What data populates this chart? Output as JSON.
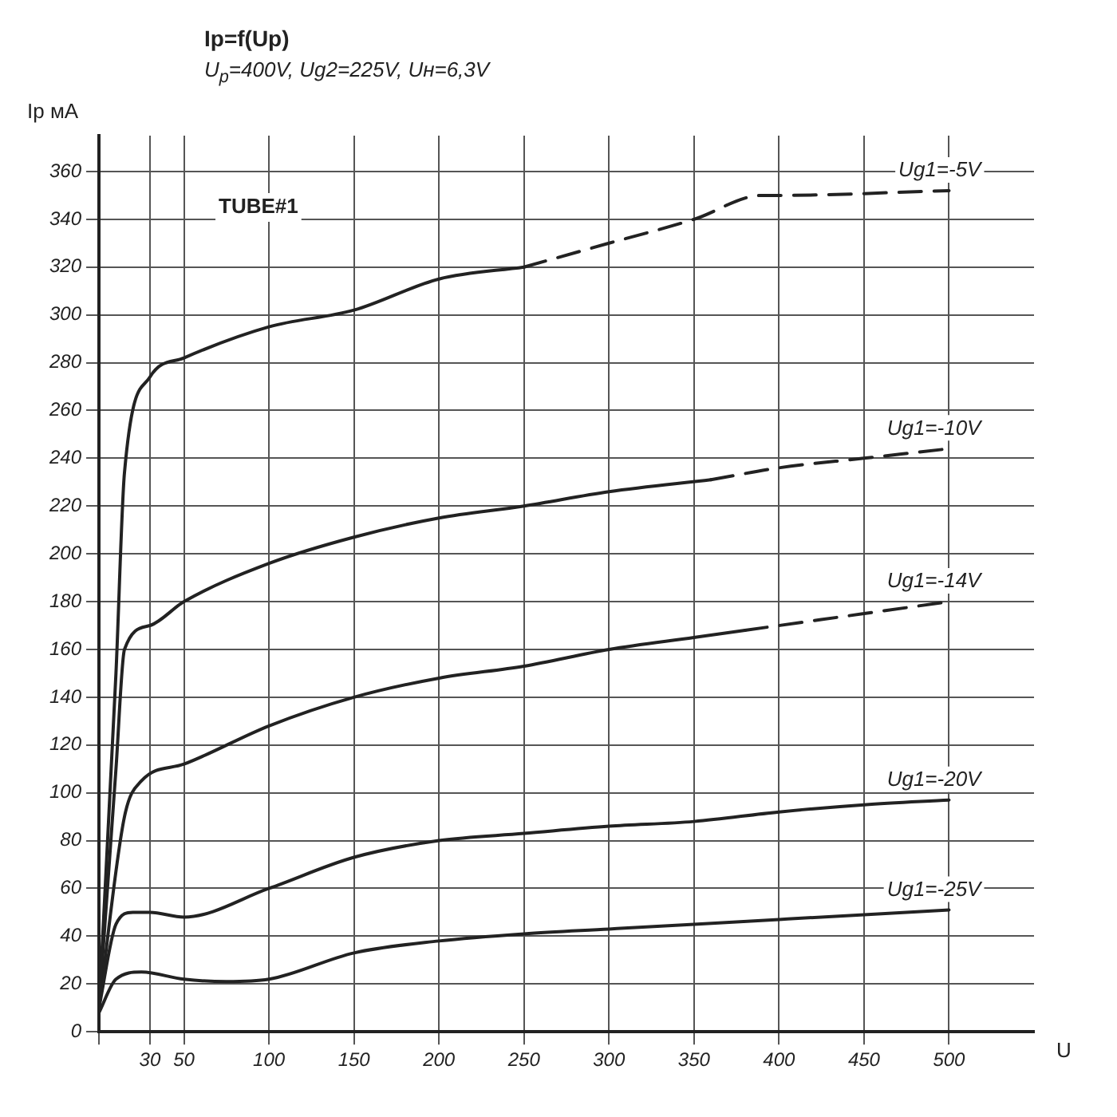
{
  "chart_data": {
    "type": "line",
    "title": "Ip=f(Up)",
    "subtitle": "U$_{p}$=400V, Ug2=225V, Uн=6,3V",
    "ylabel": "Ip мА",
    "xlabel": "U",
    "annotations": [
      "TUBE#1"
    ],
    "xlim": [
      0,
      550
    ],
    "xticks": [
      {
        "value": 0,
        "label": null
      },
      30,
      50,
      100,
      150,
      200,
      250,
      300,
      350,
      400,
      450,
      500
    ],
    "ylim": [
      0,
      375
    ],
    "yticks": [
      0,
      20,
      40,
      60,
      80,
      100,
      120,
      140,
      160,
      180,
      200,
      220,
      240,
      260,
      280,
      300,
      320,
      340,
      360
    ],
    "grid": true,
    "legend": false,
    "marker": "none",
    "series": [
      {
        "color": "#222222",
        "line_style": "solid",
        "x": [
          0,
          10,
          15,
          30,
          50,
          100,
          150,
          200,
          250
        ],
        "values": [
          10,
          150,
          234,
          274,
          282,
          295,
          302,
          315,
          320
        ]
      },
      {
        "name": "Ug1=-5V",
        "color": "#222222",
        "line_style": "dashed",
        "x": [
          250,
          300,
          350,
          390,
          400,
          500
        ],
        "values": [
          320,
          330,
          340,
          350,
          350,
          352
        ]
      },
      {
        "color": "#222222",
        "line_style": "solid",
        "x": [
          0,
          10,
          15,
          30,
          50,
          100,
          150,
          200,
          250,
          300,
          360
        ],
        "values": [
          10,
          110,
          160,
          170,
          180,
          196,
          207,
          215,
          220,
          226,
          231
        ]
      },
      {
        "name": "Ug1=-10V",
        "color": "#222222",
        "line_style": "dashed",
        "x": [
          360,
          400,
          450,
          500
        ],
        "values": [
          231,
          236,
          240,
          244
        ]
      },
      {
        "color": "#222222",
        "line_style": "solid",
        "x": [
          0,
          15,
          25,
          50,
          100,
          150,
          200,
          250,
          300,
          350,
          380
        ],
        "values": [
          10,
          90,
          105,
          112,
          128,
          140,
          148,
          153,
          160,
          165,
          168
        ]
      },
      {
        "name": "Ug1=-14V",
        "color": "#222222",
        "line_style": "dashed",
        "x": [
          380,
          400,
          450,
          500
        ],
        "values": [
          168,
          170,
          175,
          180
        ]
      },
      {
        "name": "Ug1=-20V",
        "color": "#222222",
        "line_style": "solid",
        "x": [
          0,
          10,
          20,
          30,
          50,
          100,
          150,
          200,
          250,
          300,
          350,
          400,
          450,
          500
        ],
        "values": [
          10,
          45,
          50,
          50,
          48,
          60,
          73,
          80,
          83,
          86,
          88,
          92,
          95,
          97
        ]
      },
      {
        "name": "Ug1=-25V",
        "color": "#222222",
        "line_style": "solid",
        "x": [
          0,
          10,
          25,
          50,
          75,
          100,
          150,
          200,
          250,
          300,
          350,
          400,
          450,
          500
        ],
        "values": [
          8,
          22,
          25,
          22,
          21,
          22,
          33,
          38,
          41,
          43,
          45,
          47,
          49,
          51
        ]
      }
    ]
  }
}
